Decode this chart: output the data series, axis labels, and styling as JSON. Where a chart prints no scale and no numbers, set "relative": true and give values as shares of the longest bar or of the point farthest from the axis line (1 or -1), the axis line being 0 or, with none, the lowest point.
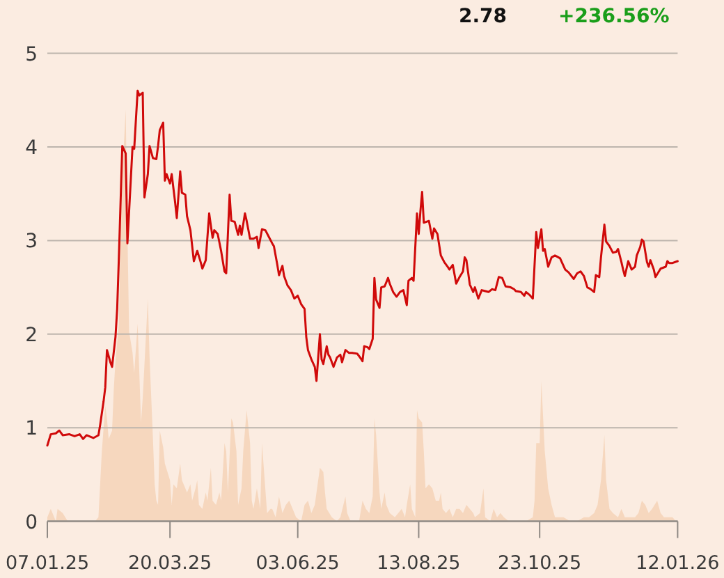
{
  "chart_data": [
    {
      "type": "line",
      "annotations": [
        "2.78",
        "+236.56%"
      ],
      "xlim": [
        "2025-01-07",
        "2026-01-12"
      ],
      "xticks": [
        {
          "value": "2025-01-07",
          "label": "07.01.25"
        },
        {
          "value": "2025-03-20",
          "label": "20.03.25"
        },
        {
          "value": "2025-06-03",
          "label": "03.06.25"
        },
        {
          "value": "2025-08-13",
          "label": "13.08.25"
        },
        {
          "value": "2025-10-23",
          "label": "23.10.25"
        },
        {
          "value": "2026-01-12",
          "label": "12.01.26"
        }
      ],
      "ylim": [
        0,
        5
      ],
      "yticks": [
        0,
        1,
        2,
        3,
        4,
        5
      ],
      "grid": "y",
      "x": [
        "2025-01-07",
        "2025-01-09",
        "2025-01-12",
        "2025-01-14",
        "2025-01-16",
        "2025-01-20",
        "2025-01-23",
        "2025-01-26",
        "2025-01-28",
        "2025-01-30",
        "2025-02-03",
        "2025-02-06",
        "2025-02-07",
        "2025-02-09",
        "2025-02-10",
        "2025-02-11",
        "2025-02-13",
        "2025-02-14",
        "2025-02-16",
        "2025-02-17",
        "2025-02-18",
        "2025-02-20",
        "2025-02-22",
        "2025-02-23",
        "2025-02-24",
        "2025-02-26",
        "2025-02-27",
        "2025-03-01",
        "2025-03-02",
        "2025-03-04",
        "2025-03-05",
        "2025-03-07",
        "2025-03-08",
        "2025-03-10",
        "2025-03-12",
        "2025-03-13",
        "2025-03-14",
        "2025-03-16",
        "2025-03-17",
        "2025-03-18",
        "2025-03-20",
        "2025-03-21",
        "2025-03-23",
        "2025-03-24",
        "2025-03-26",
        "2025-03-27",
        "2025-03-29",
        "2025-03-30",
        "2025-04-01",
        "2025-04-03",
        "2025-04-05",
        "2025-04-07",
        "2025-04-08",
        "2025-04-10",
        "2025-04-12",
        "2025-04-14",
        "2025-04-15",
        "2025-04-17",
        "2025-04-19",
        "2025-04-21",
        "2025-04-22",
        "2025-04-24",
        "2025-04-25",
        "2025-04-27",
        "2025-04-29",
        "2025-04-30",
        "2025-05-01",
        "2025-05-03",
        "2025-05-04",
        "2025-05-06",
        "2025-05-08",
        "2025-05-10",
        "2025-05-11",
        "2025-05-13",
        "2025-05-15",
        "2025-05-17",
        "2025-05-19",
        "2025-05-20",
        "2025-05-22",
        "2025-05-23",
        "2025-05-25",
        "2025-05-26",
        "2025-05-28",
        "2025-05-30",
        "2025-06-01",
        "2025-06-03",
        "2025-06-05",
        "2025-06-07",
        "2025-06-08",
        "2025-06-09",
        "2025-06-11",
        "2025-06-13",
        "2025-06-14",
        "2025-06-16",
        "2025-06-17",
        "2025-06-18",
        "2025-06-20",
        "2025-06-21",
        "2025-06-22",
        "2025-06-24",
        "2025-06-26",
        "2025-06-28",
        "2025-06-29",
        "2025-07-01",
        "2025-07-03",
        "2025-07-05",
        "2025-07-08",
        "2025-07-10",
        "2025-07-11",
        "2025-07-12",
        "2025-07-14",
        "2025-07-15",
        "2025-07-17",
        "2025-07-18",
        "2025-07-19",
        "2025-07-21",
        "2025-07-22",
        "2025-07-24",
        "2025-07-26",
        "2025-07-27",
        "2025-07-29",
        "2025-07-31",
        "2025-08-02",
        "2025-08-04",
        "2025-08-06",
        "2025-08-07",
        "2025-08-09",
        "2025-08-10",
        "2025-08-12",
        "2025-08-13",
        "2025-08-14",
        "2025-08-15",
        "2025-08-16",
        "2025-08-19",
        "2025-08-21",
        "2025-08-22",
        "2025-08-24",
        "2025-08-26",
        "2025-08-28",
        "2025-08-30",
        "2025-08-31",
        "2025-09-02",
        "2025-09-04",
        "2025-09-06",
        "2025-09-08",
        "2025-09-09",
        "2025-09-10",
        "2025-09-12",
        "2025-09-14",
        "2025-09-15",
        "2025-09-17",
        "2025-09-19",
        "2025-09-21",
        "2025-09-23",
        "2025-09-25",
        "2025-09-27",
        "2025-09-29",
        "2025-10-01",
        "2025-10-03",
        "2025-10-06",
        "2025-10-08",
        "2025-10-09",
        "2025-10-12",
        "2025-10-14",
        "2025-10-15",
        "2025-10-17",
        "2025-10-19",
        "2025-10-21",
        "2025-10-22",
        "2025-10-24",
        "2025-10-25",
        "2025-10-26",
        "2025-10-28",
        "2025-10-30",
        "2025-11-01",
        "2025-11-04",
        "2025-11-05",
        "2025-11-07",
        "2025-11-09",
        "2025-11-12",
        "2025-11-14",
        "2025-11-16",
        "2025-11-18",
        "2025-11-20",
        "2025-11-22",
        "2025-11-24",
        "2025-11-25",
        "2025-11-27",
        "2025-11-28",
        "2025-11-30",
        "2025-12-01",
        "2025-12-03",
        "2025-12-05",
        "2025-12-07",
        "2025-12-08",
        "2025-12-10",
        "2025-12-11",
        "2025-12-12",
        "2025-12-14",
        "2025-12-16",
        "2025-12-18",
        "2025-12-19",
        "2025-12-21",
        "2025-12-22",
        "2025-12-23",
        "2025-12-25",
        "2025-12-26",
        "2025-12-27",
        "2025-12-29",
        "2025-12-30",
        "2026-01-01",
        "2026-01-02",
        "2026-01-05",
        "2026-01-06",
        "2026-01-07",
        "2026-01-09",
        "2026-01-12"
      ],
      "series": [
        {
          "color": "#d00a0a",
          "values": [
            0.81,
            0.93,
            0.94,
            0.97,
            0.92,
            0.93,
            0.91,
            0.93,
            0.88,
            0.92,
            0.89,
            0.92,
            1.03,
            1.28,
            1.43,
            1.83,
            1.7,
            1.65,
            1.97,
            2.27,
            2.82,
            4.01,
            3.93,
            2.97,
            3.31,
            4.0,
            3.98,
            4.6,
            4.55,
            4.58,
            3.46,
            3.71,
            4.01,
            3.88,
            3.87,
            4.01,
            4.18,
            4.26,
            3.64,
            3.71,
            3.61,
            3.71,
            3.41,
            3.24,
            3.74,
            3.51,
            3.49,
            3.26,
            3.11,
            2.78,
            2.89,
            2.77,
            2.7,
            2.79,
            3.29,
            3.03,
            3.11,
            3.07,
            2.89,
            2.67,
            2.65,
            3.49,
            3.21,
            3.2,
            3.06,
            3.16,
            3.06,
            3.29,
            3.21,
            3.02,
            3.02,
            3.04,
            2.92,
            3.12,
            3.11,
            3.04,
            2.97,
            2.94,
            2.74,
            2.63,
            2.73,
            2.62,
            2.52,
            2.47,
            2.38,
            2.41,
            2.32,
            2.27,
            1.97,
            1.83,
            1.73,
            1.65,
            1.5,
            2.0,
            1.73,
            1.68,
            1.87,
            1.78,
            1.75,
            1.65,
            1.75,
            1.78,
            1.7,
            1.83,
            1.8,
            1.8,
            1.79,
            1.74,
            1.71,
            1.87,
            1.86,
            1.84,
            1.95,
            2.6,
            2.37,
            2.28,
            2.5,
            2.51,
            2.6,
            2.54,
            2.45,
            2.4,
            2.45,
            2.47,
            2.31,
            2.57,
            2.6,
            2.57,
            3.29,
            3.07,
            3.31,
            3.52,
            3.19,
            3.21,
            3.02,
            3.13,
            3.07,
            2.84,
            2.77,
            2.72,
            2.69,
            2.74,
            2.54,
            2.61,
            2.67,
            2.82,
            2.79,
            2.53,
            2.45,
            2.5,
            2.38,
            2.47,
            2.46,
            2.45,
            2.48,
            2.47,
            2.61,
            2.6,
            2.51,
            2.5,
            2.48,
            2.46,
            2.45,
            2.41,
            2.45,
            2.42,
            2.38,
            3.09,
            2.92,
            3.12,
            2.89,
            2.91,
            2.72,
            2.82,
            2.84,
            2.81,
            2.77,
            2.69,
            2.66,
            2.59,
            2.65,
            2.67,
            2.62,
            2.5,
            2.48,
            2.45,
            2.63,
            2.61,
            2.82,
            3.17,
            2.99,
            2.94,
            2.87,
            2.88,
            2.91,
            2.77,
            2.69,
            2.62,
            2.78,
            2.69,
            2.72,
            2.84,
            2.93,
            3.01,
            2.99,
            2.77,
            2.72,
            2.79,
            2.69,
            2.61,
            2.67,
            2.7,
            2.72,
            2.78,
            2.76,
            2.76,
            2.78
          ]
        }
      ]
    },
    {
      "type": "area",
      "relative": true,
      "xlim": [
        "2025-01-07",
        "2026-01-12"
      ],
      "x": [
        "2025-01-07",
        "2025-01-09",
        "2025-01-12",
        "2025-01-13",
        "2025-01-16",
        "2025-01-19",
        "2025-01-21",
        "2025-01-27",
        "2025-02-04",
        "2025-02-06",
        "2025-02-08",
        "2025-02-10",
        "2025-02-11",
        "2025-02-12",
        "2025-02-14",
        "2025-02-15",
        "2025-02-16",
        "2025-02-18",
        "2025-02-19",
        "2025-02-20",
        "2025-02-22",
        "2025-02-23",
        "2025-02-24",
        "2025-02-26",
        "2025-02-27",
        "2025-03-01",
        "2025-03-03",
        "2025-03-04",
        "2025-03-05",
        "2025-03-07",
        "2025-03-08",
        "2025-03-10",
        "2025-03-11",
        "2025-03-12",
        "2025-03-13",
        "2025-03-14",
        "2025-03-16",
        "2025-03-17",
        "2025-03-20",
        "2025-03-21",
        "2025-03-22",
        "2025-03-24",
        "2025-03-26",
        "2025-03-27",
        "2025-03-29",
        "2025-03-30",
        "2025-04-01",
        "2025-04-02",
        "2025-04-04",
        "2025-04-05",
        "2025-04-06",
        "2025-04-08",
        "2025-04-10",
        "2025-04-11",
        "2025-04-13",
        "2025-04-14",
        "2025-04-16",
        "2025-04-18",
        "2025-04-19",
        "2025-04-21",
        "2025-04-22",
        "2025-04-23",
        "2025-04-25",
        "2025-04-26",
        "2025-04-28",
        "2025-04-29",
        "2025-05-01",
        "2025-05-02",
        "2025-05-04",
        "2025-05-06",
        "2025-05-07",
        "2025-05-08",
        "2025-05-10",
        "2025-05-12",
        "2025-05-13",
        "2025-05-16",
        "2025-05-18",
        "2025-05-19",
        "2025-05-21",
        "2025-05-23",
        "2025-05-25",
        "2025-05-27",
        "2025-05-29",
        "2025-05-31",
        "2025-06-02",
        "2025-06-05",
        "2025-06-07",
        "2025-06-09",
        "2025-06-11",
        "2025-06-13",
        "2025-06-15",
        "2025-06-16",
        "2025-06-18",
        "2025-06-19",
        "2025-06-20",
        "2025-06-23",
        "2025-06-26",
        "2025-06-28",
        "2025-07-01",
        "2025-07-02",
        "2025-07-04",
        "2025-07-09",
        "2025-07-11",
        "2025-07-13",
        "2025-07-15",
        "2025-07-17",
        "2025-07-18",
        "2025-07-19",
        "2025-07-21",
        "2025-07-22",
        "2025-07-24",
        "2025-07-25",
        "2025-07-27",
        "2025-07-30",
        "2025-08-01",
        "2025-08-03",
        "2025-08-05",
        "2025-08-06",
        "2025-08-08",
        "2025-08-09",
        "2025-08-11",
        "2025-08-12",
        "2025-08-13",
        "2025-08-15",
        "2025-08-16",
        "2025-08-17",
        "2025-08-19",
        "2025-08-21",
        "2025-08-23",
        "2025-08-25",
        "2025-08-26",
        "2025-08-27",
        "2025-08-29",
        "2025-08-31",
        "2025-09-02",
        "2025-09-04",
        "2025-09-06",
        "2025-09-08",
        "2025-09-10",
        "2025-09-12",
        "2025-09-14",
        "2025-09-15",
        "2025-09-18",
        "2025-09-20",
        "2025-09-21",
        "2025-09-24",
        "2025-09-26",
        "2025-09-28",
        "2025-09-30",
        "2025-10-02",
        "2025-10-05",
        "2025-10-10",
        "2025-10-15",
        "2025-10-19",
        "2025-10-20",
        "2025-10-21",
        "2025-10-23",
        "2025-10-24",
        "2025-10-26",
        "2025-10-28",
        "2025-10-30",
        "2025-11-01",
        "2025-11-04",
        "2025-11-06",
        "2025-11-10",
        "2025-11-14",
        "2025-11-18",
        "2025-11-21",
        "2025-11-24",
        "2025-11-26",
        "2025-11-28",
        "2025-11-30",
        "2025-12-01",
        "2025-12-03",
        "2025-12-05",
        "2025-12-08",
        "2025-12-10",
        "2025-12-12",
        "2025-12-14",
        "2025-12-18",
        "2025-12-20",
        "2025-12-22",
        "2025-12-24",
        "2025-12-26",
        "2025-12-28",
        "2025-12-31",
        "2026-01-02",
        "2026-01-04",
        "2026-01-07",
        "2026-01-09",
        "2026-01-11"
      ],
      "series": [
        {
          "color": "#f6d7be",
          "values": [
            0.01,
            0.03,
            0,
            0.03,
            0.02,
            0,
            0,
            0,
            0,
            0.01,
            0.17,
            0.28,
            0.25,
            0.2,
            0.22,
            0.32,
            0.39,
            0.48,
            0.71,
            0.84,
            1,
            0.71,
            0.46,
            0.41,
            0.36,
            0.48,
            0.24,
            0.3,
            0.38,
            0.54,
            0.4,
            0.2,
            0.09,
            0.05,
            0.04,
            0.22,
            0.18,
            0.14,
            0.1,
            0.04,
            0.09,
            0.08,
            0.14,
            0.1,
            0.08,
            0.07,
            0.09,
            0.05,
            0.08,
            0.1,
            0.04,
            0.03,
            0.07,
            0.05,
            0.13,
            0.05,
            0.04,
            0.07,
            0.05,
            0.19,
            0.17,
            0.07,
            0.25,
            0.24,
            0.17,
            0.04,
            0.08,
            0.17,
            0.27,
            0.19,
            0.05,
            0.03,
            0.08,
            0.03,
            0.19,
            0.02,
            0.03,
            0.03,
            0.01,
            0.06,
            0.02,
            0.04,
            0.05,
            0.03,
            0.01,
            0,
            0.04,
            0.05,
            0.02,
            0.04,
            0.1,
            0.13,
            0.12,
            0.07,
            0.03,
            0.01,
            0,
            0.01,
            0.06,
            0.02,
            0,
            0,
            0.05,
            0.03,
            0.02,
            0.06,
            0.25,
            0.21,
            0.07,
            0.03,
            0.07,
            0.04,
            0.02,
            0.01,
            0.02,
            0.03,
            0.01,
            0.04,
            0.09,
            0.03,
            0.01,
            0.27,
            0.25,
            0.24,
            0.17,
            0.08,
            0.09,
            0.08,
            0.05,
            0.05,
            0.07,
            0.03,
            0.02,
            0.03,
            0.01,
            0.03,
            0.03,
            0.02,
            0.04,
            0.03,
            0.02,
            0.01,
            0.02,
            0.08,
            0.01,
            0,
            0.03,
            0.01,
            0.02,
            0.01,
            0,
            0,
            0,
            0.01,
            0.05,
            0.19,
            0.19,
            0.34,
            0.17,
            0.08,
            0.04,
            0.01,
            0.01,
            0.01,
            0,
            0,
            0.01,
            0.01,
            0.02,
            0.04,
            0.1,
            0.21,
            0.1,
            0.03,
            0.02,
            0.01,
            0.03,
            0.01,
            0.01,
            0.01,
            0.02,
            0.05,
            0.04,
            0.02,
            0.03,
            0.05,
            0.02,
            0.01,
            0.01,
            0.01,
            0
          ]
        }
      ]
    }
  ]
}
